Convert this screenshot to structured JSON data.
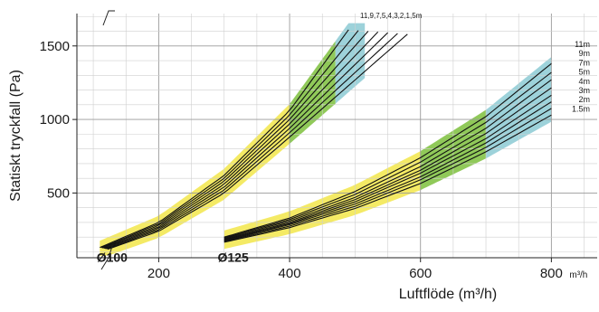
{
  "chart_data": {
    "type": "line",
    "xlabel": "Luftflöde (m³/h)",
    "ylabel": "Statiskt tryckfall (Pa)",
    "x_unit_label": "m³/h",
    "x_ticks": [
      200,
      400,
      600,
      800
    ],
    "y_ticks": [
      500,
      1000,
      1500
    ],
    "xlim": [
      75,
      870
    ],
    "ylim": [
      60,
      1720
    ],
    "grid": true,
    "axis_break": true,
    "groups": [
      {
        "name": "Ø100",
        "label_pos": [
          105,
          95
        ],
        "x_range": [
          110,
          515
        ],
        "band_colors": [
          "#f2e64a",
          "#7dbf3c",
          "#8ccad3"
        ],
        "band_breaks": [
          110,
          400,
          470,
          515
        ],
        "lengths": [
          "11",
          "9",
          "7,5",
          "4",
          "3",
          "2",
          "1,5m"
        ],
        "length_label_text": "11,9,7,5,4,3,2,1,5m",
        "series": [
          {
            "name": "11",
            "x": [
              110,
              200,
              300,
              400,
              490
            ],
            "y": [
              130,
              300,
              620,
              1060,
              1610
            ]
          },
          {
            "name": "9",
            "x": [
              112,
              200,
              300,
              400,
              505
            ],
            "y": [
              128,
              290,
              600,
              1030,
              1605
            ]
          },
          {
            "name": "7,5",
            "x": [
              114,
              200,
              300,
              400,
              520
            ],
            "y": [
              126,
              280,
              580,
              1000,
              1600
            ]
          },
          {
            "name": "4",
            "x": [
              116,
              200,
              300,
              400,
              535
            ],
            "y": [
              124,
              270,
              560,
              970,
              1595
            ]
          },
          {
            "name": "3",
            "x": [
              118,
              200,
              300,
              400,
              550
            ],
            "y": [
              122,
              260,
              540,
              940,
              1590
            ]
          },
          {
            "name": "2",
            "x": [
              120,
              200,
              300,
              400,
              565
            ],
            "y": [
              120,
              250,
              520,
              910,
              1585
            ]
          },
          {
            "name": "1,5m",
            "x": [
              122,
              200,
              300,
              400,
              580
            ],
            "y": [
              118,
              240,
              500,
              880,
              1580
            ]
          }
        ]
      },
      {
        "name": "Ø125",
        "label_pos": [
          290,
          95
        ],
        "x_range": [
          300,
          800
        ],
        "band_colors": [
          "#f2e64a",
          "#7dbf3c",
          "#8ccad3"
        ],
        "band_breaks": [
          300,
          600,
          700,
          800
        ],
        "lengths": [
          "11m",
          "9m",
          "7m",
          "5m",
          "4m",
          "3m",
          "2m",
          "1.5m"
        ],
        "series": [
          {
            "name": "11m",
            "x": [
              300,
              400,
              500,
              600,
              700,
              800
            ],
            "y": [
              200,
              330,
              510,
              740,
              1020,
              1380
            ]
          },
          {
            "name": "9m",
            "x": [
              300,
              400,
              500,
              600,
              700,
              800
            ],
            "y": [
              195,
              320,
              490,
              710,
              980,
              1320
            ]
          },
          {
            "name": "7m",
            "x": [
              300,
              400,
              500,
              600,
              700,
              800
            ],
            "y": [
              190,
              310,
              470,
              680,
              940,
              1270
            ]
          },
          {
            "name": "5m",
            "x": [
              300,
              400,
              500,
              600,
              700,
              800
            ],
            "y": [
              185,
              300,
              455,
              655,
              905,
              1215
            ]
          },
          {
            "name": "4m",
            "x": [
              300,
              400,
              500,
              600,
              700,
              800
            ],
            "y": [
              180,
              292,
              440,
              635,
              870,
              1165
            ]
          },
          {
            "name": "3m",
            "x": [
              300,
              400,
              500,
              600,
              700,
              800
            ],
            "y": [
              175,
              285,
              425,
              610,
              840,
              1120
            ]
          },
          {
            "name": "2m",
            "x": [
              300,
              400,
              500,
              600,
              700,
              800
            ],
            "y": [
              170,
              275,
              410,
              590,
              810,
              1075
            ]
          },
          {
            "name": "1.5m",
            "x": [
              300,
              400,
              500,
              600,
              700,
              800
            ],
            "y": [
              165,
              265,
              395,
              565,
              780,
              1030
            ]
          }
        ]
      }
    ]
  }
}
